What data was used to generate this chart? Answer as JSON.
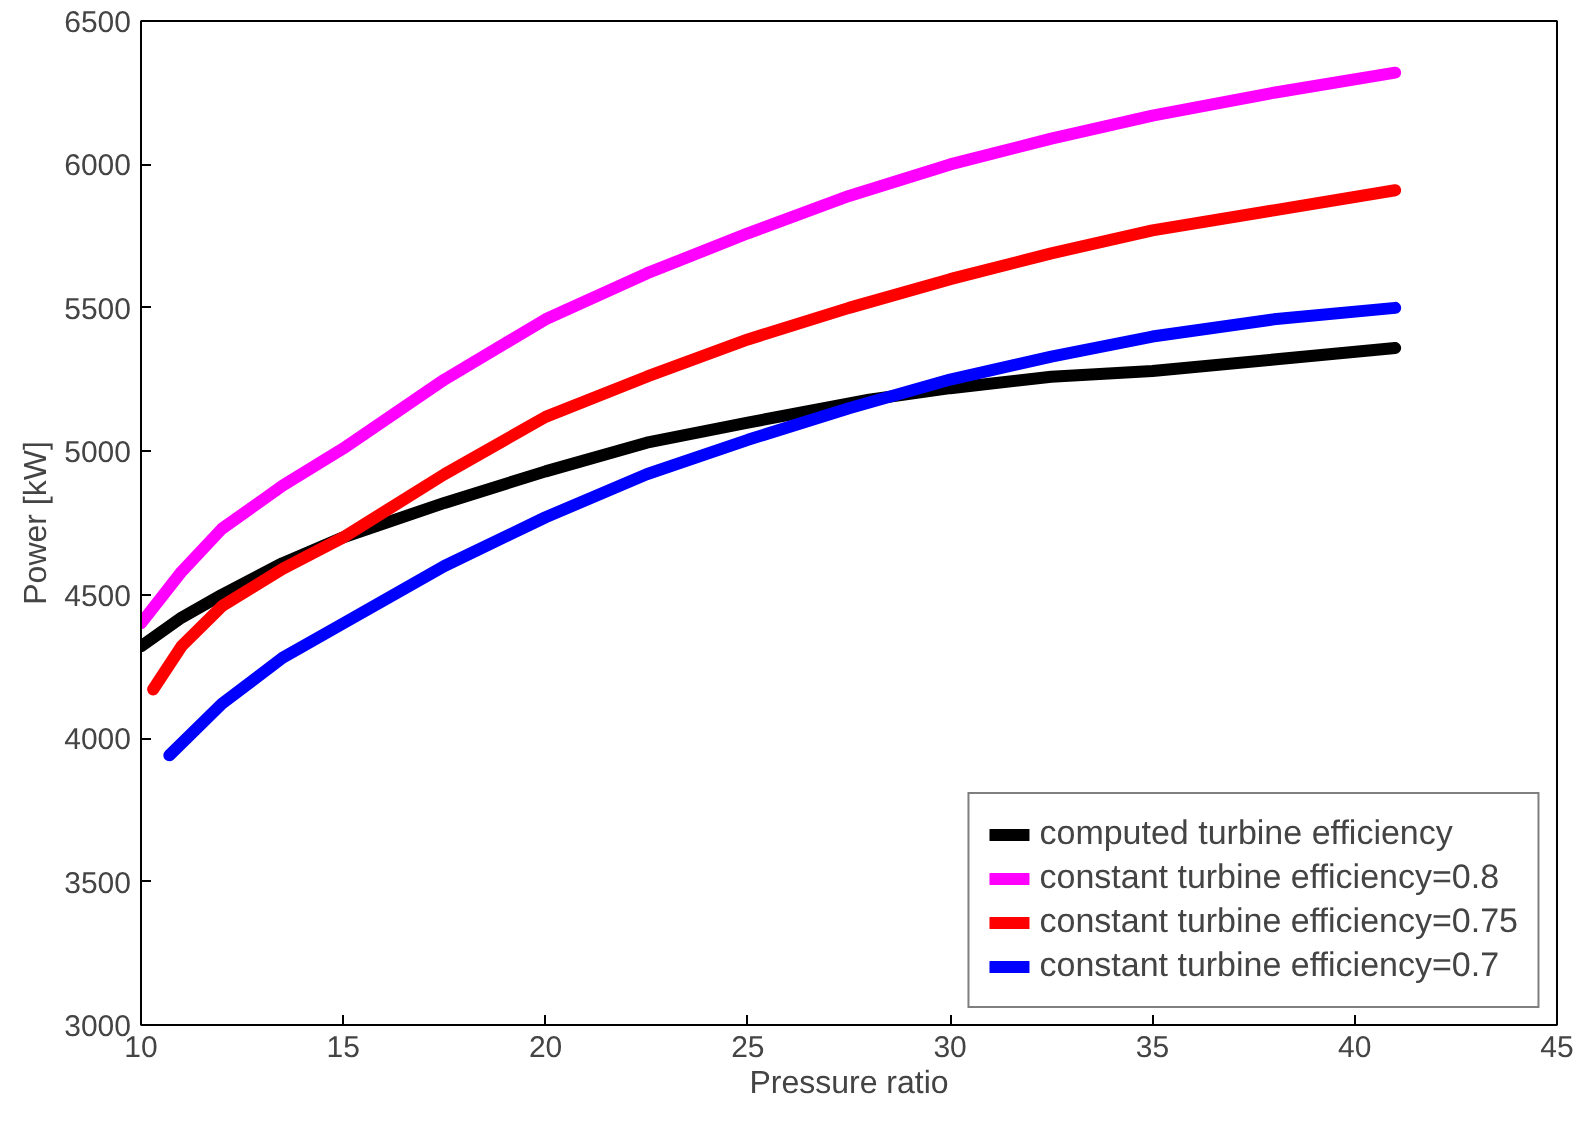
{
  "chart_data": {
    "type": "line",
    "xlabel": "Pressure ratio",
    "ylabel": "Power [kW]",
    "xlim": [
      10,
      45
    ],
    "xticks": [
      10,
      15,
      20,
      25,
      30,
      35,
      40,
      45
    ],
    "ylim": [
      3000,
      6500
    ],
    "yticks": [
      3000,
      3500,
      4000,
      4500,
      5000,
      5500,
      6000,
      6500
    ],
    "grid": false,
    "legend": "bottom right",
    "series": [
      {
        "name": "computed turbine efficiency",
        "color": "#000000",
        "x": [
          10,
          11,
          12,
          13.5,
          15,
          17.5,
          20,
          22.5,
          25,
          28,
          30,
          32.5,
          35,
          38,
          41
        ],
        "values": [
          4320,
          4420,
          4500,
          4610,
          4700,
          4820,
          4930,
          5030,
          5100,
          5180,
          5220,
          5260,
          5280,
          5320,
          5360
        ]
      },
      {
        "name": "constant turbine efficiency=0.8",
        "color": "#ff00ff",
        "x": [
          10,
          11,
          12,
          13.5,
          15,
          17.5,
          20,
          22.5,
          25,
          27.5,
          30,
          32.5,
          35,
          38,
          41
        ],
        "values": [
          4400,
          4580,
          4730,
          4880,
          5010,
          5250,
          5460,
          5620,
          5760,
          5890,
          6000,
          6090,
          6170,
          6250,
          6320
        ]
      },
      {
        "name": "constant turbine efficiency=0.75",
        "color": "#ff0000",
        "x": [
          10.3,
          11,
          12,
          13.5,
          15,
          17.5,
          20,
          22.5,
          25,
          27.5,
          30,
          32.5,
          35,
          38,
          41
        ],
        "values": [
          4170,
          4320,
          4460,
          4590,
          4700,
          4920,
          5120,
          5260,
          5390,
          5500,
          5600,
          5690,
          5770,
          5840,
          5910
        ]
      },
      {
        "name": "constant turbine efficiency=0.7",
        "color": "#0000ff",
        "x": [
          10.7,
          12,
          13.5,
          15,
          17.5,
          20,
          22.5,
          25,
          27.5,
          30,
          32.5,
          35,
          38,
          41
        ],
        "values": [
          3940,
          4120,
          4280,
          4400,
          4600,
          4770,
          4920,
          5040,
          5150,
          5250,
          5330,
          5400,
          5460,
          5500
        ]
      }
    ]
  }
}
